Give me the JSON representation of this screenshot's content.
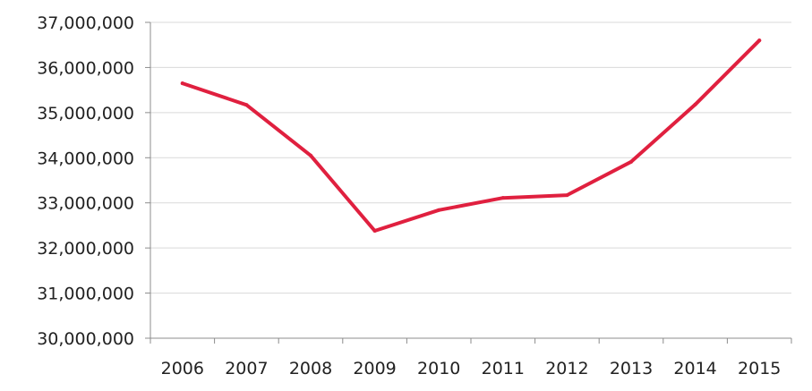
{
  "chart_data": {
    "type": "line",
    "categories": [
      "2006",
      "2007",
      "2008",
      "2009",
      "2010",
      "2011",
      "2012",
      "2013",
      "2014",
      "2015"
    ],
    "series": [
      {
        "values": [
          35650000,
          35170000,
          34050000,
          32380000,
          32840000,
          33110000,
          33170000,
          33910000,
          35180000,
          36600000
        ],
        "color": "#e0203f"
      }
    ],
    "title": "",
    "xlabel": "",
    "ylabel": "",
    "ylim": [
      30000000,
      37000000
    ],
    "yticks": [
      30000000,
      31000000,
      32000000,
      33000000,
      34000000,
      35000000,
      36000000,
      37000000
    ],
    "ytick_labels": [
      "30,000,000",
      "31,000,000",
      "32,000,000",
      "33,000,000",
      "34,000,000",
      "35,000,000",
      "36,000,000",
      "37,000,000"
    ],
    "grid": true,
    "legend": "none"
  }
}
